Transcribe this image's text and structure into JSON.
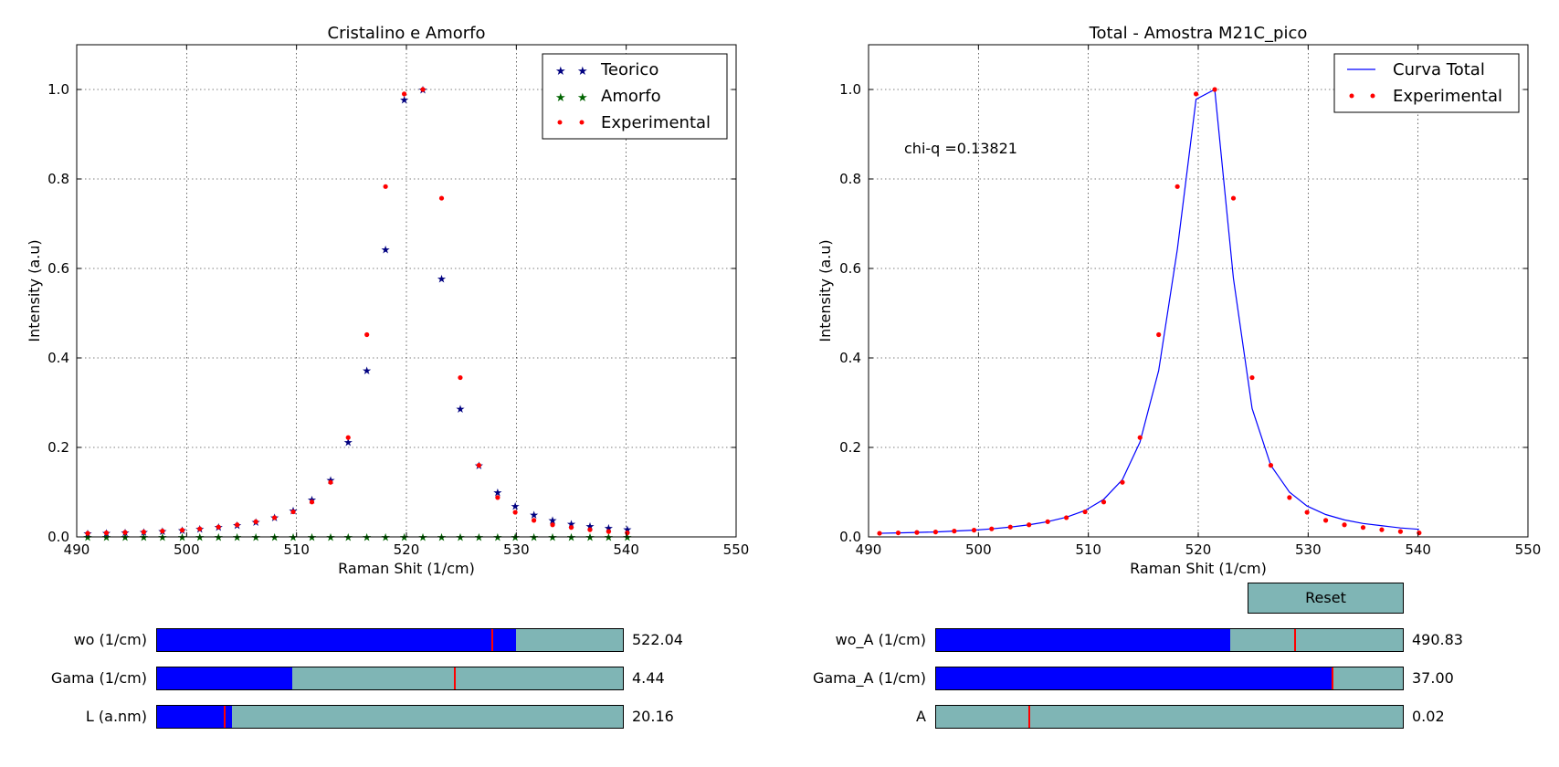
{
  "chart_data": [
    {
      "type": "scatter",
      "title": "Cristalino e Amorfo",
      "xlabel": "Raman Shit (1/cm)",
      "ylabel": "Intensity (a.u)",
      "xlim": [
        490,
        550
      ],
      "ylim": [
        0.0,
        1.1
      ],
      "xticks": [
        "490",
        "500",
        "510",
        "520",
        "530",
        "540",
        "550"
      ],
      "yticks": [
        "0.0",
        "0.2",
        "0.4",
        "0.6",
        "0.8",
        "1.0"
      ],
      "grid": true,
      "legend_position": "top-right",
      "x": [
        491.0,
        492.7,
        494.4,
        496.1,
        497.8,
        499.6,
        501.2,
        502.9,
        504.6,
        506.3,
        508.0,
        509.7,
        511.4,
        513.1,
        514.7,
        516.4,
        518.1,
        519.8,
        521.5,
        523.2,
        524.9,
        526.6,
        528.3,
        529.9,
        531.6,
        533.3,
        535.0,
        536.7,
        538.4,
        540.1
      ],
      "series": [
        {
          "name": "Teorico",
          "marker": "star",
          "color": "#000080",
          "values": [
            0.008,
            0.009,
            0.01,
            0.011,
            0.013,
            0.015,
            0.018,
            0.022,
            0.027,
            0.034,
            0.044,
            0.059,
            0.084,
            0.128,
            0.212,
            0.372,
            0.643,
            0.978,
            1.0,
            0.578,
            0.287,
            0.16,
            0.1,
            0.069,
            0.05,
            0.038,
            0.03,
            0.025,
            0.02,
            0.017
          ]
        },
        {
          "name": "Amorfo",
          "marker": "star",
          "color": "#006400",
          "values": [
            0,
            0,
            0,
            0,
            0,
            0,
            0,
            0,
            0,
            0,
            0,
            0,
            0,
            0,
            0,
            0,
            0,
            0,
            0,
            0,
            0,
            0,
            0,
            0,
            0,
            0,
            0,
            0,
            0,
            0
          ]
        },
        {
          "name": "Experimental",
          "marker": "dot",
          "color": "#ff0000",
          "values": [
            0.008,
            0.009,
            0.01,
            0.011,
            0.013,
            0.015,
            0.018,
            0.022,
            0.027,
            0.034,
            0.043,
            0.056,
            0.078,
            0.122,
            0.222,
            0.452,
            0.783,
            0.99,
            1.0,
            0.757,
            0.356,
            0.16,
            0.088,
            0.055,
            0.037,
            0.027,
            0.021,
            0.016,
            0.012,
            0.009
          ]
        }
      ]
    },
    {
      "type": "line",
      "title": "Total - Amostra M21C_pico",
      "xlabel": "Raman Shit (1/cm)",
      "ylabel": "Intensity (a.u)",
      "xlim": [
        490,
        550
      ],
      "ylim": [
        0.0,
        1.1
      ],
      "xticks": [
        "490",
        "500",
        "510",
        "520",
        "530",
        "540",
        "550"
      ],
      "yticks": [
        "0.0",
        "0.2",
        "0.4",
        "0.6",
        "0.8",
        "1.0"
      ],
      "grid": true,
      "legend_position": "top-right",
      "annotation": "chi-q =0.13821",
      "x": [
        491.0,
        492.7,
        494.4,
        496.1,
        497.8,
        499.6,
        501.2,
        502.9,
        504.6,
        506.3,
        508.0,
        509.7,
        511.4,
        513.1,
        514.7,
        516.4,
        518.1,
        519.8,
        521.5,
        523.2,
        524.9,
        526.6,
        528.3,
        529.9,
        531.6,
        533.3,
        535.0,
        536.7,
        538.4,
        540.1
      ],
      "series": [
        {
          "name": "Curva Total",
          "marker": "line",
          "color": "#0000ff",
          "values": [
            0.008,
            0.009,
            0.01,
            0.011,
            0.013,
            0.015,
            0.018,
            0.022,
            0.027,
            0.034,
            0.044,
            0.059,
            0.084,
            0.128,
            0.212,
            0.372,
            0.643,
            0.978,
            1.0,
            0.578,
            0.287,
            0.16,
            0.1,
            0.069,
            0.05,
            0.038,
            0.03,
            0.025,
            0.02,
            0.017
          ]
        },
        {
          "name": "Experimental",
          "marker": "dot",
          "color": "#ff0000",
          "values": [
            0.008,
            0.009,
            0.01,
            0.011,
            0.013,
            0.015,
            0.018,
            0.022,
            0.027,
            0.034,
            0.043,
            0.056,
            0.078,
            0.122,
            0.222,
            0.452,
            0.783,
            0.99,
            1.0,
            0.757,
            0.356,
            0.16,
            0.088,
            0.055,
            0.037,
            0.027,
            0.021,
            0.016,
            0.012,
            0.009
          ]
        }
      ]
    }
  ],
  "sliders": [
    {
      "id": "wo",
      "label": "wo (1/cm)",
      "value_text": "522.04",
      "fill_fraction": 0.77,
      "initial_fraction": 0.72
    },
    {
      "id": "gama",
      "label": "Gama (1/cm)",
      "value_text": "4.44",
      "fill_fraction": 0.29,
      "initial_fraction": 0.64
    },
    {
      "id": "l",
      "label": "L (a.nm)",
      "value_text": "20.16",
      "fill_fraction": 0.16,
      "initial_fraction": 0.145
    },
    {
      "id": "wo_a",
      "label": "wo_A (1/cm)",
      "value_text": "490.83",
      "fill_fraction": 0.63,
      "initial_fraction": 0.77
    },
    {
      "id": "gama_a",
      "label": "Gama_A (1/cm)",
      "value_text": "37.00",
      "fill_fraction": 0.85,
      "initial_fraction": 0.85
    },
    {
      "id": "a",
      "label": "A",
      "value_text": "0.02",
      "fill_fraction": 0.0,
      "initial_fraction": 0.2
    }
  ],
  "reset_label": "Reset",
  "colors": {
    "slider_bg": "#7fb5b5",
    "slider_fill": "#0000ff",
    "slider_init": "#ff0000"
  }
}
